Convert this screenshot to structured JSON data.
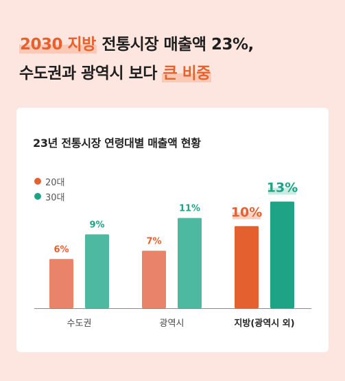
{
  "headline": {
    "line1_highlight": "2030 지방",
    "line1_rest": " 전통시장 매출액 23%,",
    "line2_pre": "수도권과 광역시 보다 ",
    "line2_highlight": "큰 비중"
  },
  "colors": {
    "series_20": "#e9846a",
    "series_20_highlight": "#e5602f",
    "series_30": "#4db9a0",
    "series_30_highlight": "#1fa386",
    "label_20": "#e5602f",
    "label_30": "#1fa386"
  },
  "chart_data": {
    "type": "bar",
    "title": "23년 전통시장 연령대별 매출액 현황",
    "categories": [
      "수도권",
      "광역시",
      "지방(광역시 외)"
    ],
    "series": [
      {
        "name": "20대",
        "values": [
          6,
          7,
          10
        ],
        "labels": [
          "6%",
          "7%",
          "10%"
        ]
      },
      {
        "name": "30대",
        "values": [
          9,
          11,
          13
        ],
        "labels": [
          "9%",
          "11%",
          "13%"
        ]
      }
    ],
    "highlight_category": "지방(광역시 외)",
    "ylim": [
      0,
      13.8
    ],
    "grid": false,
    "legend": "top-left"
  }
}
